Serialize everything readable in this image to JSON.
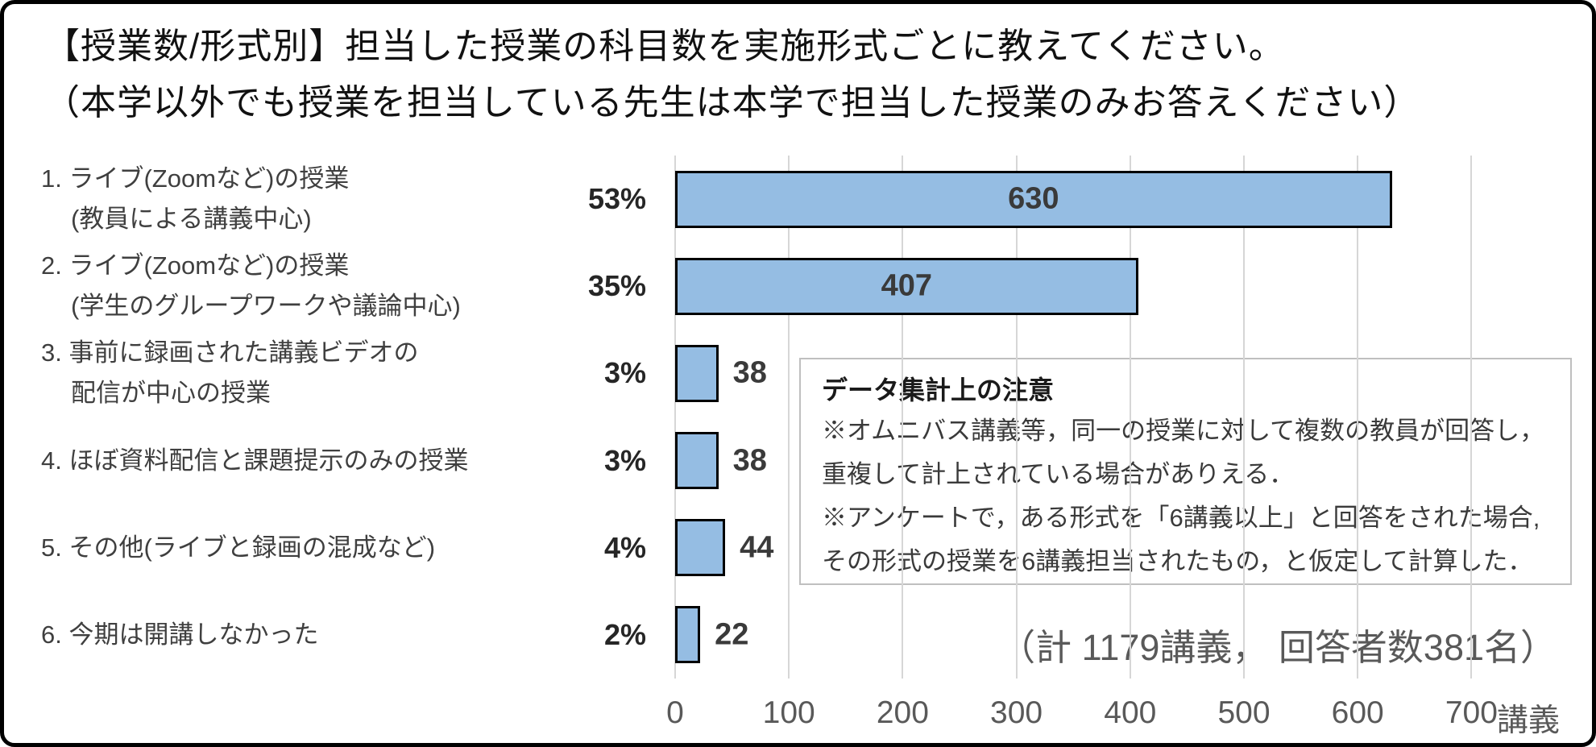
{
  "title": {
    "line1": "【授業数/形式別】担当した授業の科目数を実施形式ごとに教えてください。",
    "line2": "（本学以外でも授業を担当している先生は本学で担当した授業のみお答えください）"
  },
  "chart_data": {
    "type": "bar",
    "orientation": "horizontal",
    "categories": [
      {
        "lines": [
          "1. ライブ(Zoomなど)の授業",
          "(教員による講義中心)"
        ]
      },
      {
        "lines": [
          "2. ライブ(Zoomなど)の授業",
          "(学生のグループワークや議論中心)"
        ]
      },
      {
        "lines": [
          "3. 事前に録画された講義ビデオの",
          "配信が中心の授業"
        ]
      },
      {
        "lines": [
          "4. ほぼ資料配信と課題提示のみの授業"
        ]
      },
      {
        "lines": [
          "5. その他(ライブと録画の混成など)"
        ]
      },
      {
        "lines": [
          "6. 今期は開講しなかった"
        ]
      }
    ],
    "values": [
      630,
      407,
      38,
      38,
      44,
      22
    ],
    "percent_labels": [
      "53%",
      "35%",
      "3%",
      "3%",
      "4%",
      "2%"
    ],
    "x_ticks": [
      0,
      100,
      200,
      300,
      400,
      500,
      600,
      700
    ],
    "xlim": [
      0,
      788
    ],
    "xlabel": "講義",
    "grid": true,
    "legend": "none",
    "bar_fill": "#95bde3",
    "bar_border": "#000000"
  },
  "note_box": {
    "title": "データ集計上の注意",
    "lines": [
      "※オムニバス講義等，同一の授業に対して複数の教員が回答し，",
      "重複して計上されている場合がありえる．",
      "※アンケートで，ある形式を「6講義以上」と回答をされた場合,",
      "その形式の授業を6講義担当されたもの，と仮定して計算した．"
    ]
  },
  "annotation": "（計 1179講義， 回答者数381名）"
}
